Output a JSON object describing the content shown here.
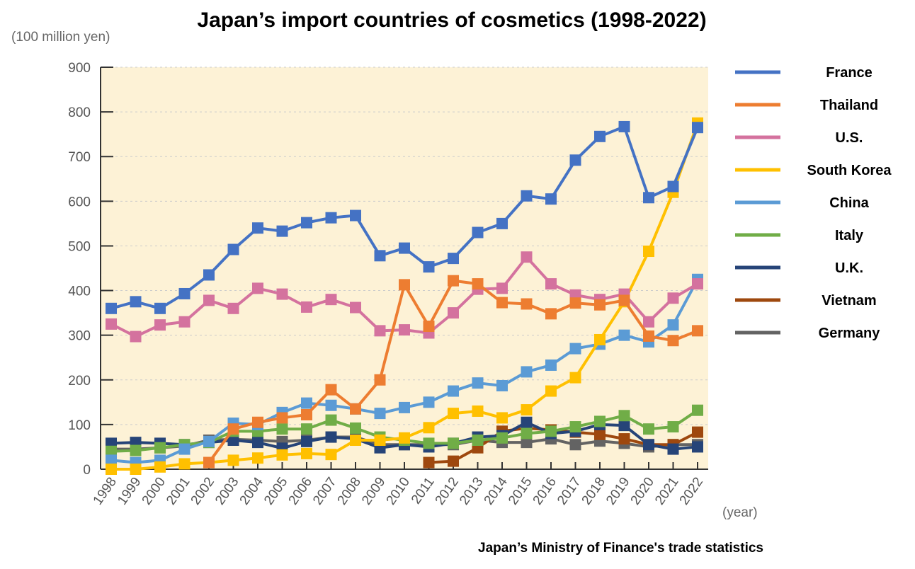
{
  "chart_data": {
    "type": "line",
    "title": "Japan’s import countries of cosmetics (1998-2022)",
    "ylabel": "(100 million yen)",
    "xlabel": "(year)",
    "source": "Japan’s Ministry of Finance's trade statistics",
    "ylim": [
      0,
      900
    ],
    "yticks": [
      0,
      100,
      200,
      300,
      400,
      500,
      600,
      700,
      800,
      900
    ],
    "grid": true,
    "legend_position": "right",
    "x": [
      "1998",
      "1999",
      "2000",
      "2001",
      "2002",
      "2003",
      "2004",
      "2005",
      "2006",
      "2007",
      "2008",
      "2009",
      "2010",
      "2011",
      "2012",
      "2013",
      "2014",
      "2015",
      "2016",
      "2017",
      "2018",
      "2019",
      "2020",
      "2021",
      "2022"
    ],
    "series": [
      {
        "name": "France",
        "color": "#4472c4",
        "values": [
          360,
          375,
          360,
          393,
          435,
          492,
          540,
          533,
          552,
          563,
          568,
          478,
          495,
          453,
          472,
          530,
          550,
          612,
          605,
          692,
          745,
          767,
          608,
          633,
          765
        ]
      },
      {
        "name": "Thailand",
        "color": "#ed7d31",
        "values": [
          null,
          null,
          null,
          null,
          15,
          90,
          105,
          115,
          122,
          178,
          135,
          200,
          413,
          320,
          422,
          415,
          373,
          370,
          348,
          372,
          368,
          378,
          298,
          288,
          310
        ]
      },
      {
        "name": "U.S.",
        "color": "#d4729e",
        "values": [
          325,
          297,
          323,
          330,
          378,
          360,
          405,
          392,
          363,
          380,
          362,
          310,
          312,
          305,
          350,
          403,
          405,
          475,
          415,
          390,
          380,
          392,
          330,
          383,
          415
        ]
      },
      {
        "name": "South Korea",
        "color": "#ffc000",
        "values": [
          0,
          0,
          5,
          12,
          15,
          20,
          25,
          32,
          35,
          33,
          65,
          65,
          70,
          93,
          125,
          130,
          115,
          133,
          175,
          205,
          290,
          375,
          488,
          620,
          775
        ]
      },
      {
        "name": "China",
        "color": "#5b9bd5",
        "values": [
          20,
          15,
          20,
          45,
          62,
          103,
          100,
          127,
          148,
          143,
          135,
          125,
          138,
          150,
          175,
          193,
          187,
          218,
          233,
          270,
          280,
          300,
          285,
          323,
          425
        ]
      },
      {
        "name": "Italy",
        "color": "#70ad47",
        "values": [
          40,
          42,
          48,
          55,
          60,
          85,
          85,
          90,
          90,
          110,
          92,
          72,
          65,
          58,
          58,
          65,
          70,
          80,
          85,
          95,
          107,
          120,
          90,
          95,
          132
        ]
      },
      {
        "name": "U.K.",
        "color": "#264478",
        "values": [
          58,
          60,
          58,
          55,
          60,
          65,
          60,
          47,
          62,
          72,
          68,
          48,
          55,
          50,
          58,
          72,
          75,
          105,
          80,
          85,
          100,
          98,
          55,
          45,
          50
        ]
      },
      {
        "name": "Vietnam",
        "color": "#9e480e",
        "values": [
          null,
          null,
          null,
          null,
          null,
          null,
          null,
          null,
          null,
          null,
          null,
          null,
          null,
          15,
          18,
          48,
          85,
          92,
          88,
          83,
          78,
          68,
          55,
          55,
          83
        ]
      },
      {
        "name": "Germany",
        "color": "#636363",
        "values": [
          45,
          45,
          48,
          52,
          65,
          67,
          65,
          62,
          65,
          72,
          72,
          55,
          55,
          55,
          55,
          65,
          60,
          60,
          68,
          55,
          63,
          58,
          50,
          55,
          55
        ]
      }
    ]
  }
}
